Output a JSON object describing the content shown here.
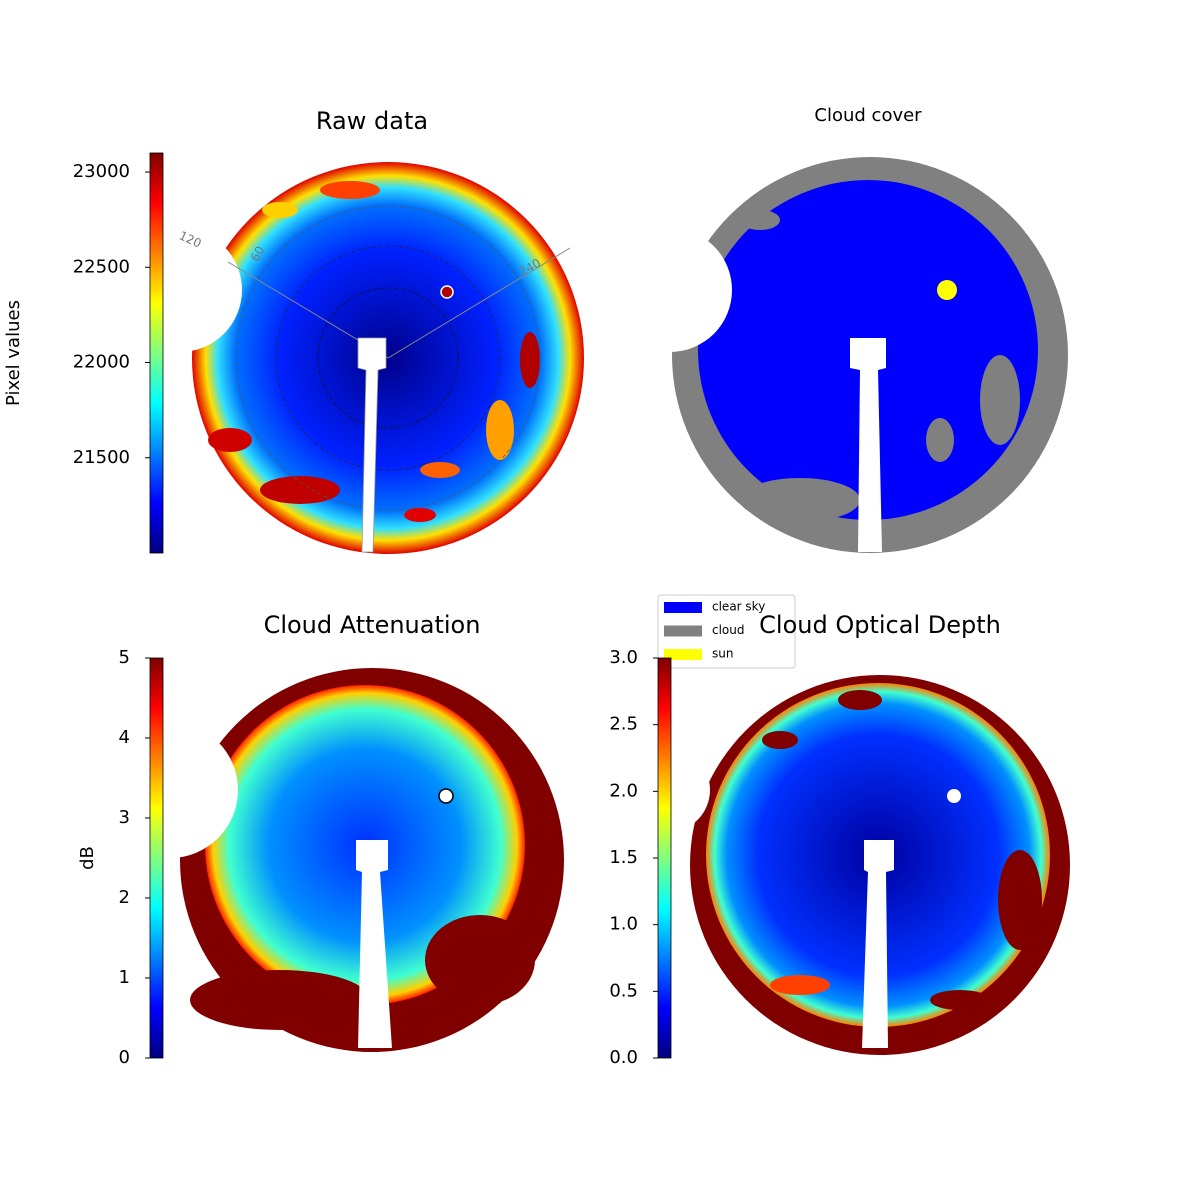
{
  "chart_data": [
    {
      "type": "image",
      "title": "Raw data",
      "colorbar": {
        "label": "Pixel values",
        "lim": [
          21000,
          23100
        ],
        "ticks": [
          21500,
          22000,
          22500,
          23000
        ]
      },
      "annotations": [
        "120",
        "60",
        "240"
      ]
    },
    {
      "type": "image",
      "title": "Cloud cover",
      "legend": [
        {
          "name": "clear sky",
          "color": "#0000ff"
        },
        {
          "name": "cloud",
          "color": "#808080"
        },
        {
          "name": "sun",
          "color": "#ffff00"
        }
      ]
    },
    {
      "type": "image",
      "title": "Cloud Attenuation",
      "colorbar": {
        "label": "dB",
        "lim": [
          0,
          5
        ],
        "ticks": [
          0,
          1,
          2,
          3,
          4,
          5
        ]
      }
    },
    {
      "type": "image",
      "title": "Cloud Optical Depth",
      "colorbar": {
        "lim": [
          0,
          3
        ],
        "ticks": [
          {
            "value": 0,
            "label": "0.0"
          },
          0.5,
          {
            "value": 1,
            "label": "1.0"
          },
          1.5,
          {
            "value": 2,
            "label": "2.0"
          },
          2.5,
          {
            "value": 3,
            "label": "3.0"
          }
        ]
      }
    }
  ]
}
